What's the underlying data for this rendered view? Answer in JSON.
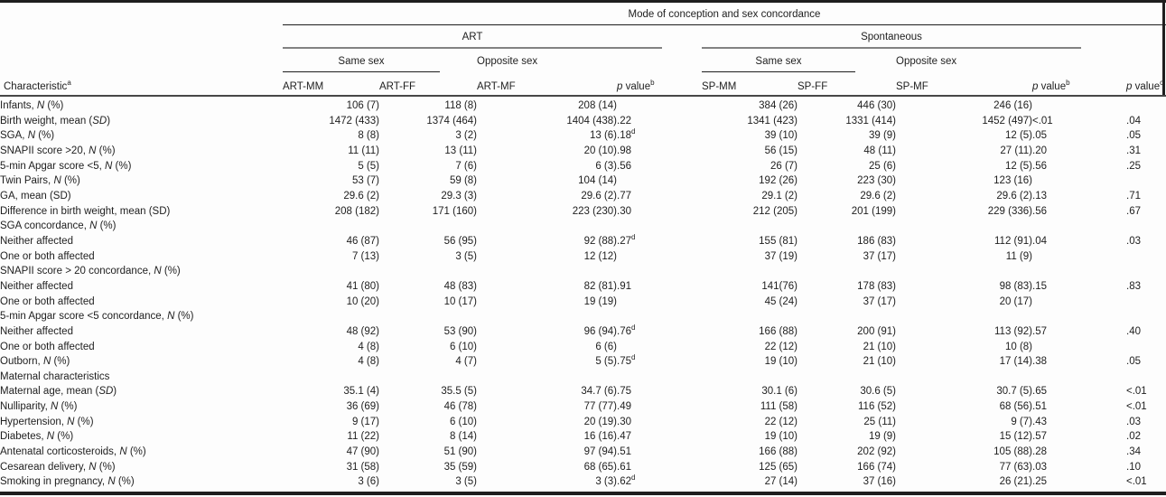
{
  "table": {
    "span_header": "Mode of conception and sex concordance",
    "group_headers": {
      "art": "ART",
      "spontaneous": "Spontaneous"
    },
    "subgroup_headers": {
      "art_same": "Same sex",
      "art_opposite": "Opposite sex",
      "sp_same": "Same sex",
      "sp_opposite": "Opposite sex"
    },
    "column_headers": {
      "characteristic": "Characteristic^a^",
      "art_mm": "ART-MM",
      "art_ff": "ART-FF",
      "art_mf": "ART-MF",
      "p_value_art": "*p* value^b^",
      "sp_mm": "SP-MM",
      "sp_ff": "SP-FF",
      "sp_mf": "SP-MF",
      "p_value_sp": "*p* value^b^",
      "p_value_overall": "*p* value^c^"
    },
    "rows": [
      {
        "label": "Infants, *N* (%)",
        "indent": 0,
        "cells": [
          "106 (7)",
          "118 (8)",
          "208 (14)",
          "",
          "384 (26)",
          "446 (30)",
          "246 (16)",
          "",
          ""
        ]
      },
      {
        "label": "Birth weight, mean (*SD*)",
        "indent": 1,
        "cells": [
          "1472 (433)",
          "1374 (464)",
          "1404 (438)",
          ".22",
          "1341 (423)",
          "1331 (414)",
          "1452 (497)",
          "<.01",
          ".04"
        ]
      },
      {
        "label": "SGA, *N* (%)",
        "indent": 1,
        "cells": [
          "8 (8)",
          "3 (2)",
          "13 (6)",
          ".18^d^",
          "39 (10)",
          "39 (9)",
          "12 (5)",
          ".05",
          ".05"
        ]
      },
      {
        "label": "SNAPII score >20, *N* (%)",
        "indent": 1,
        "cells": [
          "11 (11)",
          "13 (11)",
          "20 (10)",
          ".98",
          "56 (15)",
          "48 (11)",
          "27 (11)",
          ".20",
          ".31"
        ]
      },
      {
        "label": "5-min Apgar score <5, *N* (%)",
        "indent": 1,
        "cells": [
          "5 (5)",
          "7 (6)",
          "6 (3)",
          ".56",
          "26 (7)",
          "25 (6)",
          "12 (5)",
          ".56",
          ".25"
        ]
      },
      {
        "label": "Twin Pairs, *N* (%)",
        "indent": 0,
        "cells": [
          "53 (7)",
          "59 (8)",
          "104 (14)",
          "",
          "192 (26)",
          "223 (30)",
          "123 (16)",
          "",
          ""
        ]
      },
      {
        "label": "GA, mean (SD)",
        "indent": 1,
        "cells": [
          "29.6 (2)",
          "29.3 (3)",
          "29.6 (2)",
          ".77",
          "29.1 (2)",
          "29.6 (2)",
          "29.6 (2)",
          ".13",
          ".71"
        ]
      },
      {
        "label": "Difference in birth weight, mean (SD)",
        "indent": 1,
        "cells": [
          "208 (182)",
          "171 (160)",
          "223 (230)",
          ".30",
          "212 (205)",
          "201 (199)",
          "229 (336)",
          ".56",
          ".67"
        ]
      },
      {
        "label": "SGA concordance, *N* (%)",
        "indent": 1,
        "cells": [
          "",
          "",
          "",
          "",
          "",
          "",
          "",
          "",
          ""
        ]
      },
      {
        "label": "Neither affected",
        "indent": 2,
        "cells": [
          "46 (87)",
          "56 (95)",
          "92 (88)",
          ".27^d^",
          "155 (81)",
          "186 (83)",
          "112 (91)",
          ".04",
          ".03"
        ]
      },
      {
        "label": "One or both affected",
        "indent": 2,
        "cells": [
          "7 (13)",
          "3 (5)",
          "12 (12)",
          "",
          "37 (19)",
          "37 (17)",
          "11 (9)",
          "",
          ""
        ]
      },
      {
        "label": "SNAPII score > 20 concordance, *N* (%)",
        "indent": 1,
        "cells": [
          "",
          "",
          "",
          "",
          "",
          "",
          "",
          "",
          ""
        ]
      },
      {
        "label": "Neither affected",
        "indent": 2,
        "cells": [
          "41 (80)",
          "48 (83)",
          "82 (81)",
          ".91",
          "141(76)",
          "178 (83)",
          "98 (83)",
          ".15",
          ".83"
        ]
      },
      {
        "label": "One or both affected",
        "indent": 2,
        "cells": [
          "10 (20)",
          "10 (17)",
          "19 (19)",
          "",
          "45 (24)",
          "37 (17)",
          "20 (17)",
          "",
          ""
        ]
      },
      {
        "label": "5-min Apgar score <5 concordance, *N* (%)",
        "indent": 1,
        "cells": [
          "",
          "",
          "",
          "",
          "",
          "",
          "",
          "",
          ""
        ]
      },
      {
        "label": "Neither affected",
        "indent": 2,
        "cells": [
          "48 (92)",
          "53 (90)",
          "96 (94)",
          ".76^d^",
          "166 (88)",
          "200 (91)",
          "113 (92)",
          ".57",
          ".40"
        ]
      },
      {
        "label": "One or both affected",
        "indent": 2,
        "cells": [
          "4 (8)",
          "6 (10)",
          "6 (6)",
          "",
          "22 (12)",
          "21 (10)",
          "10 (8)",
          "",
          ""
        ]
      },
      {
        "label": "Outborn, *N* (%)",
        "indent": 1,
        "cells": [
          "4 (8)",
          "4 (7)",
          "5 (5)",
          ".75^d^",
          "19 (10)",
          "21 (10)",
          "17 (14)",
          ".38",
          ".05"
        ]
      },
      {
        "label": "Maternal characteristics",
        "indent": 0,
        "cells": [
          "",
          "",
          "",
          "",
          "",
          "",
          "",
          "",
          ""
        ]
      },
      {
        "label": "Maternal age, mean (*SD*)",
        "indent": 1,
        "cells": [
          "35.1 (4)",
          "35.5 (5)",
          "34.7 (6)",
          ".75",
          "30.1 (6)",
          "30.6 (5)",
          "30.7 (5)",
          ".65",
          "<.01"
        ]
      },
      {
        "label": "Nulliparity, *N* (%)",
        "indent": 1,
        "cells": [
          "36 (69)",
          "46 (78)",
          "77 (77)",
          ".49",
          "111 (58)",
          "116 (52)",
          "68 (56)",
          ".51",
          "<.01"
        ]
      },
      {
        "label": "Hypertension, *N* (%)",
        "indent": 1,
        "cells": [
          "9 (17)",
          "6 (10)",
          "20 (19)",
          ".30",
          "22 (12)",
          "25 (11)",
          "9 (7)",
          ".43",
          ".03"
        ]
      },
      {
        "label": "Diabetes, *N* (%)",
        "indent": 1,
        "cells": [
          "11 (22)",
          "8 (14)",
          "16 (16)",
          ".47",
          "19 (10)",
          "19 (9)",
          "15 (12)",
          ".57",
          ".02"
        ]
      },
      {
        "label": "Antenatal corticosteroids, *N* (%)",
        "indent": 1,
        "cells": [
          "47 (90)",
          "51 (90)",
          "97 (94)",
          ".51",
          "166 (88)",
          "202 (92)",
          "105 (88)",
          ".28",
          ".34"
        ]
      },
      {
        "label": "Cesarean delivery, *N* (%)",
        "indent": 1,
        "cells": [
          "31 (58)",
          "35 (59)",
          "68 (65)",
          ".61",
          "125 (65)",
          "166 (74)",
          "77 (63)",
          ".03",
          ".10"
        ]
      },
      {
        "label": "Smoking in pregnancy, *N* (%)",
        "indent": 1,
        "cells": [
          "3 (6)",
          "3 (5)",
          "3 (3)",
          ".62^d^",
          "27 (14)",
          "37 (16)",
          "26 (21)",
          ".25",
          "<.01"
        ]
      }
    ],
    "colors": {
      "text": "#1e1e1e",
      "thin_rule": "#1e1e1e",
      "section_rule": "#828282",
      "header_bottom_rule": "#474747"
    }
  }
}
